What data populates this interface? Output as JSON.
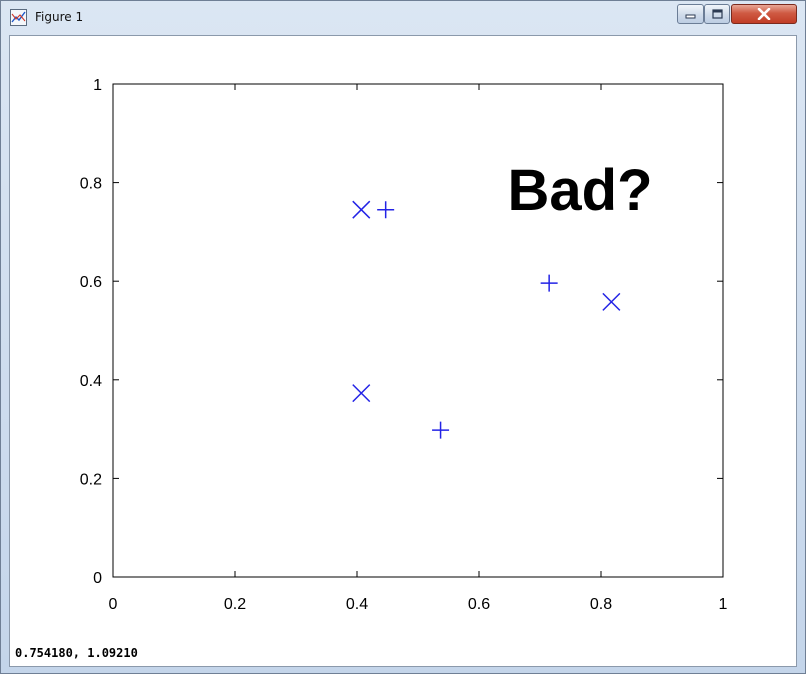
{
  "window": {
    "title": "Figure 1",
    "status_readout": "0.754180, 1.09210",
    "controls": {
      "minimize": "minimize-icon",
      "maximize": "maximize-icon",
      "close": "close-icon"
    }
  },
  "chart_data": {
    "type": "scatter",
    "xlim": [
      0,
      1
    ],
    "ylim": [
      0,
      1
    ],
    "x_ticks": [
      "0",
      "0.2",
      "0.4",
      "0.6",
      "0.8",
      "1"
    ],
    "y_ticks": [
      "0",
      "0.2",
      "0.4",
      "0.6",
      "0.8",
      "1"
    ],
    "grid": false,
    "series": [
      {
        "marker": "x",
        "color": "#2323e6",
        "points": [
          [
            0.407,
            0.745
          ],
          [
            0.407,
            0.373
          ],
          [
            0.817,
            0.558
          ]
        ]
      },
      {
        "marker": "+",
        "color": "#2323e6",
        "points": [
          [
            0.447,
            0.745
          ],
          [
            0.537,
            0.298
          ],
          [
            0.715,
            0.596
          ]
        ]
      }
    ],
    "annotation": "Bad?"
  }
}
